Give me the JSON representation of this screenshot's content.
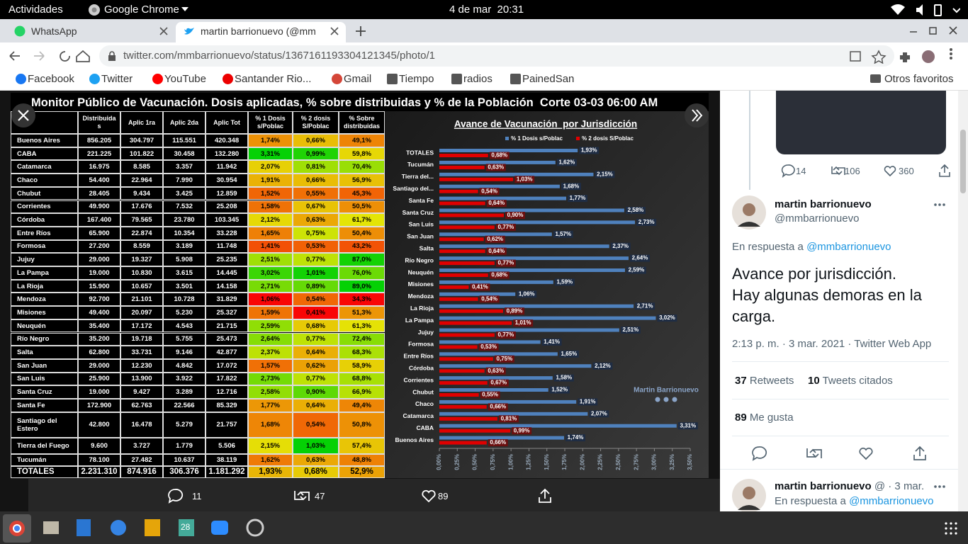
{
  "system_bar": {
    "activities": "Actividades",
    "app": "Google Chrome",
    "clock": "4 de mar  20:31"
  },
  "tabs": [
    {
      "title": "WhatsApp"
    },
    {
      "title": "martin barrionuevo (@mm"
    }
  ],
  "address": "twitter.com/mmbarrionuevo/status/1367161193304121345/photo/1",
  "bookmarks": [
    "Facebook",
    "Twitter",
    "YouTube",
    "Santander Rio...",
    "Gmail",
    "Tiempo",
    "radios",
    "PainedSan"
  ],
  "other_bookmarks": "Otros favoritos",
  "photo": {
    "title": "Monitor Público de Vacunación. Dosis aplicadas, % sobre distribuidas y % de la Población  Corte 03-03 06:00 AM",
    "table": {
      "headers": [
        "Distribuida s",
        "Aplic 1ra",
        "Aplic 2da",
        "Aplic Tot",
        "% 1 Dosis s/Poblac",
        "% 2 dosis S/Poblac",
        "% Sobre distribuidas"
      ],
      "rows": [
        [
          "Buenos Aires",
          "856.205",
          "304.797",
          "115.551",
          "420.348",
          "1,74%",
          "0,66%",
          "49,1%"
        ],
        [
          "CABA",
          "221.225",
          "101.822",
          "30.458",
          "132.280",
          "3,31%",
          "0,99%",
          "59,8%"
        ],
        [
          "Catamarca",
          "16.975",
          "8.585",
          "3.357",
          "11.942",
          "2,07%",
          "0,81%",
          "70,4%"
        ],
        [
          "Chaco",
          "54.400",
          "22.964",
          "7.990",
          "30.954",
          "1,91%",
          "0,66%",
          "56,9%"
        ],
        [
          "Chubut",
          "28.405",
          "9.434",
          "3.425",
          "12.859",
          "1,52%",
          "0,55%",
          "45,3%"
        ],
        [
          "Corrientes",
          "49.900",
          "17.676",
          "7.532",
          "25.208",
          "1,58%",
          "0,67%",
          "50,5%"
        ],
        [
          "Córdoba",
          "167.400",
          "79.565",
          "23.780",
          "103.345",
          "2,12%",
          "0,63%",
          "61,7%"
        ],
        [
          "Entre Ríos",
          "65.900",
          "22.874",
          "10.354",
          "33.228",
          "1,65%",
          "0,75%",
          "50,4%"
        ],
        [
          "Formosa",
          "27.200",
          "8.559",
          "3.189",
          "11.748",
          "1,41%",
          "0,53%",
          "43,2%"
        ],
        [
          "Jujuy",
          "29.000",
          "19.327",
          "5.908",
          "25.235",
          "2,51%",
          "0,77%",
          "87,0%"
        ],
        [
          "La Pampa",
          "19.000",
          "10.830",
          "3.615",
          "14.445",
          "3,02%",
          "1,01%",
          "76,0%"
        ],
        [
          "La Rioja",
          "15.900",
          "10.657",
          "3.501",
          "14.158",
          "2,71%",
          "0,89%",
          "89,0%"
        ],
        [
          "Mendoza",
          "92.700",
          "21.101",
          "10.728",
          "31.829",
          "1,06%",
          "0,54%",
          "34,3%"
        ],
        [
          "Misiones",
          "49.400",
          "20.097",
          "5.230",
          "25.327",
          "1,59%",
          "0,41%",
          "51,3%"
        ],
        [
          "Neuquén",
          "35.400",
          "17.172",
          "4.543",
          "21.715",
          "2,59%",
          "0,68%",
          "61,3%"
        ],
        [
          "Río Negro",
          "35.200",
          "19.718",
          "5.755",
          "25.473",
          "2,64%",
          "0,77%",
          "72,4%"
        ],
        [
          "Salta",
          "62.800",
          "33.731",
          "9.146",
          "42.877",
          "2,37%",
          "0,64%",
          "68,3%"
        ],
        [
          "San Juan",
          "29.000",
          "12.230",
          "4.842",
          "17.072",
          "1,57%",
          "0,62%",
          "58,9%"
        ],
        [
          "San Luis",
          "25.900",
          "13.900",
          "3.922",
          "17.822",
          "2,73%",
          "0,77%",
          "68,8%"
        ],
        [
          "Santa Cruz",
          "19.000",
          "9.427",
          "3.289",
          "12.716",
          "2,58%",
          "0,90%",
          "66,9%"
        ],
        [
          "Santa Fe",
          "172.900",
          "62.763",
          "22.566",
          "85.329",
          "1,77%",
          "0,64%",
          "49,4%"
        ],
        [
          "Santiago del Estero",
          "42.800",
          "16.478",
          "5.279",
          "21.757",
          "1,68%",
          "0,54%",
          "50,8%"
        ],
        [
          "Tierra del Fuego",
          "9.600",
          "3.727",
          "1.779",
          "5.506",
          "2,15%",
          "1,03%",
          "57,4%"
        ],
        [
          "Tucumán",
          "78.100",
          "27.482",
          "10.637",
          "38.119",
          "1,62%",
          "0,63%",
          "48,8%"
        ],
        [
          "TOTALES",
          "2.231.310",
          "874.916",
          "306.376",
          "1.181.292",
          "1,93%",
          "0,68%",
          "52,9%"
        ]
      ]
    },
    "chart": {
      "type": "bar",
      "title": "Avance de Vacunación  por Jurisdicción",
      "categories": [
        "TOTALES",
        "Tucumán",
        "Tierra del...",
        "Santiago del...",
        "Santa Fe",
        "Santa Cruz",
        "San Luis",
        "San Juan",
        "Salta",
        "Río Negro",
        "Neuquén",
        "Misiones",
        "Mendoza",
        "La Rioja",
        "La Pampa",
        "Jujuy",
        "Formosa",
        "Entre Ríos",
        "Córdoba",
        "Corrientes",
        "Chubut",
        "Chaco",
        "Catamarca",
        "CABA",
        "Buenos Aires"
      ],
      "series": [
        {
          "name": "% 1 Dosis s/Poblac",
          "color": "#4f81bd",
          "values": [
            1.93,
            1.62,
            2.15,
            1.68,
            1.77,
            2.58,
            2.73,
            1.57,
            2.37,
            2.64,
            2.59,
            1.59,
            1.06,
            2.71,
            3.02,
            2.51,
            1.41,
            1.65,
            2.12,
            1.58,
            1.52,
            1.91,
            2.07,
            3.31,
            1.74
          ],
          "value_labels": [
            "1,93%",
            "1,62%",
            "2,15%",
            "1,68%",
            "1,77%",
            "2,58%",
            "2,73%",
            "1,57%",
            "2,37%",
            "2,64%",
            "2,59%",
            "1,59%",
            "1,06%",
            "2,71%",
            "3,02%",
            "2,51%",
            "1,41%",
            "1,65%",
            "2,12%",
            "1,58%",
            "1,52%",
            "1,91%",
            "2,07%",
            "3,31%",
            "1,74%"
          ]
        },
        {
          "name": "% 2 dosis S/Poblac",
          "color": "#e00000",
          "values": [
            0.68,
            0.63,
            1.03,
            0.54,
            0.64,
            0.9,
            0.77,
            0.62,
            0.64,
            0.77,
            0.68,
            0.41,
            0.54,
            0.89,
            1.01,
            0.77,
            0.53,
            0.75,
            0.63,
            0.67,
            0.55,
            0.66,
            0.81,
            0.99,
            0.66
          ],
          "value_labels": [
            "0,68%",
            "0,63%",
            "1,03%",
            "0,54%",
            "0,64%",
            "0,90%",
            "0,77%",
            "0,62%",
            "0,64%",
            "0,77%",
            "0,68%",
            "0,41%",
            "0,54%",
            "0,89%",
            "1,01%",
            "0,77%",
            "0,53%",
            "0,75%",
            "0,63%",
            "0,67%",
            "0,55%",
            "0,66%",
            "0,81%",
            "0,99%",
            "0,66%"
          ]
        }
      ],
      "xlim": [
        0,
        3.5
      ],
      "xticks": [
        {
          "value": 0,
          "label": "0,00%"
        },
        {
          "value": 0.25,
          "label": "0,25%"
        },
        {
          "value": 0.5,
          "label": "0,50%"
        },
        {
          "value": 0.75,
          "label": "0,75%"
        },
        {
          "value": 1,
          "label": "1,00%"
        },
        {
          "value": 1.25,
          "label": "1,25%"
        },
        {
          "value": 1.5,
          "label": "1,50%"
        },
        {
          "value": 1.75,
          "label": "1,75%"
        },
        {
          "value": 2,
          "label": "2,00%"
        },
        {
          "value": 2.25,
          "label": "2,25%"
        },
        {
          "value": 2.5,
          "label": "2,50%"
        },
        {
          "value": 2.75,
          "label": "2,75%"
        },
        {
          "value": 3,
          "label": "3,00%"
        },
        {
          "value": 3.25,
          "label": "3,25%"
        },
        {
          "value": 3.5,
          "label": "3,50%"
        }
      ],
      "legend": "top",
      "grid": false
    },
    "watermark": "Martin Barrionuevo"
  },
  "photo_actions": {
    "replies": "11",
    "retweets": "47",
    "likes": "89"
  },
  "sidebar": {
    "prev_metrics": {
      "replies": "14",
      "retweets": "106",
      "likes": "360"
    },
    "tweet": {
      "name": "martin barrionuevo",
      "handle": "@mmbarrionuevo",
      "reply_to": "En respuesta a",
      "reply_handle": "@mmbarrionuevo",
      "text": "Avance por jurisdicción.\nHay algunas demoras en la carga.",
      "meta": "2:13 p. m. · 3 mar. 2021 · Twitter Web App",
      "retweets": "37",
      "retweets_label": "Retweets",
      "quotes": "10",
      "quotes_label": "Tweets citados",
      "likes": "89",
      "likes_label": "Me gusta"
    },
    "next": {
      "name": "martin barrionuevo",
      "handle": "@ · 3 mar.",
      "reply_to": "En respuesta a",
      "reply_handle": "@mmbarrionuevo"
    }
  },
  "taskbar": {
    "calendar_day": "28"
  }
}
